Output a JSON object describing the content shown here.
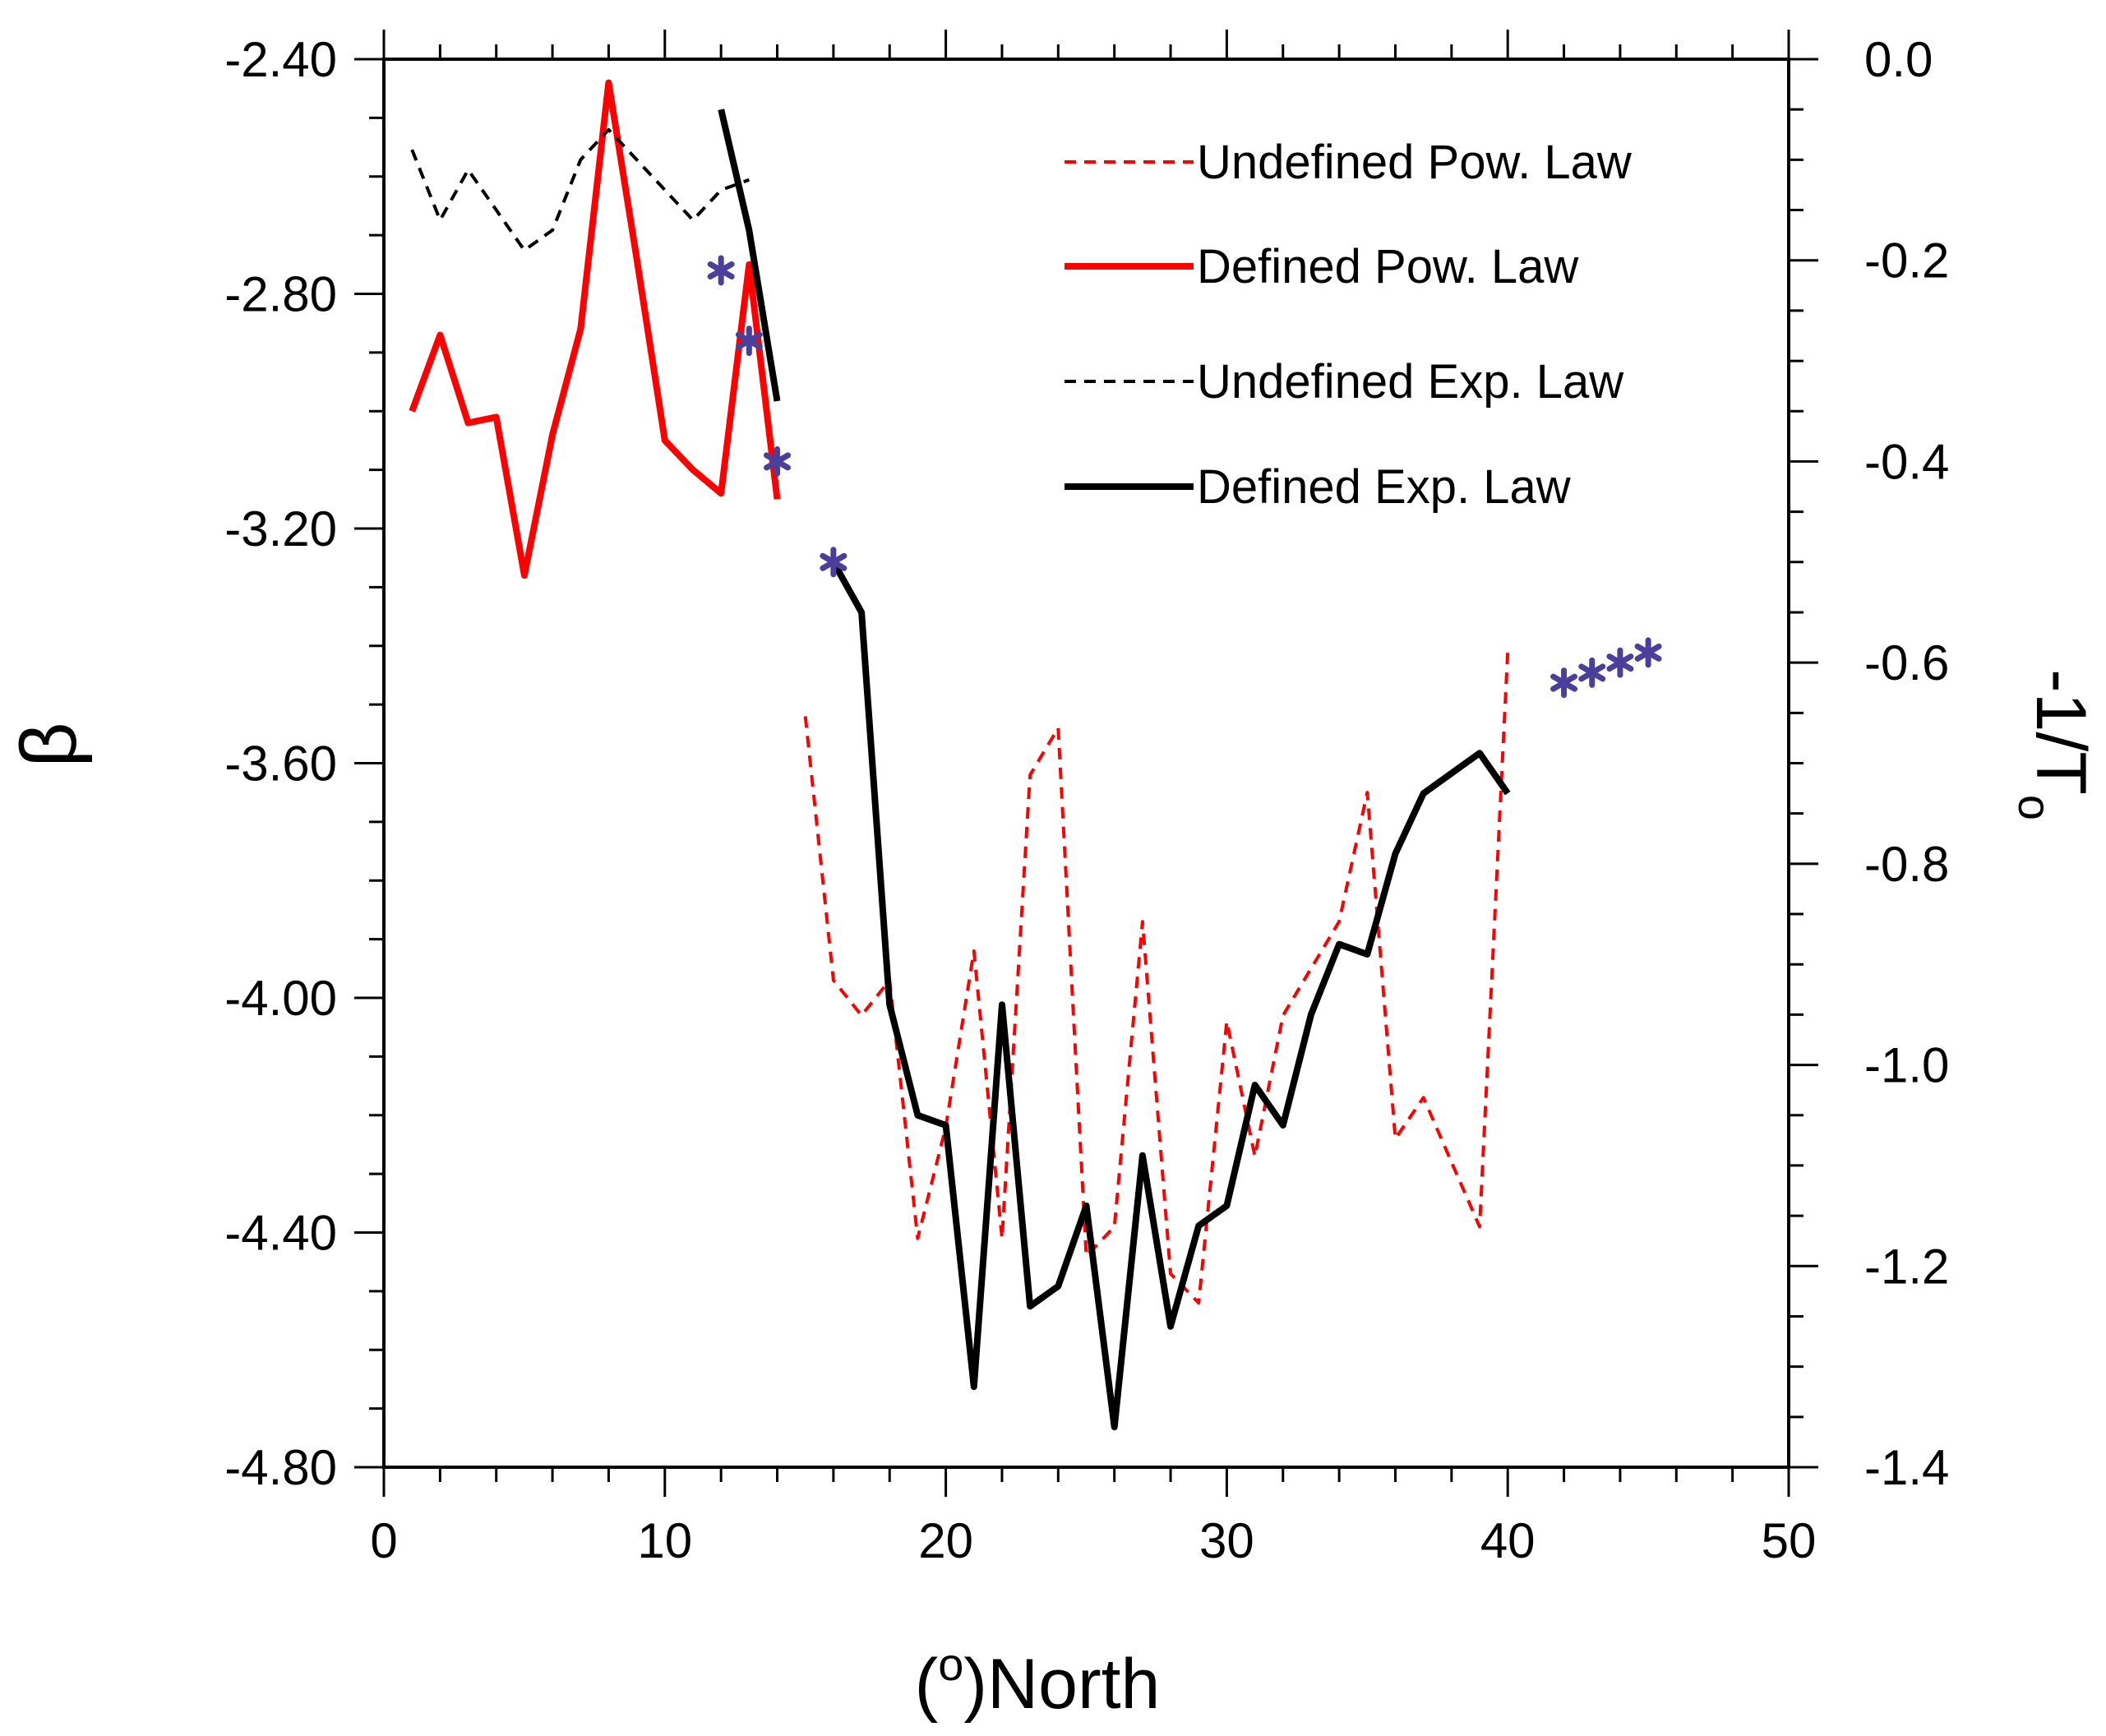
{
  "chart_data": {
    "type": "line",
    "title": "",
    "xlabel": "(°)North",
    "xlabel_parts": {
      "open": "(",
      "sup": "o",
      "close": ")North"
    },
    "ylabel_left": "β",
    "ylabel_right": "-1/T₀",
    "ylabel_right_parts": {
      "main": "-1/T",
      "sub": "o"
    },
    "xlim": [
      0,
      50
    ],
    "ylim_left": [
      -4.8,
      -2.4
    ],
    "ylim_right": [
      -1.4,
      0.0
    ],
    "x_ticks": [
      {
        "v": 0,
        "label": "0"
      },
      {
        "v": 10,
        "label": "10"
      },
      {
        "v": 20,
        "label": "20"
      },
      {
        "v": 30,
        "label": "30"
      },
      {
        "v": 40,
        "label": "40"
      },
      {
        "v": 50,
        "label": "50"
      }
    ],
    "y_left_ticks": [
      {
        "v": -2.4,
        "label": "-2.40"
      },
      {
        "v": -2.8,
        "label": "-2.80"
      },
      {
        "v": -3.2,
        "label": "-3.20"
      },
      {
        "v": -3.6,
        "label": "-3.60"
      },
      {
        "v": -4.0,
        "label": "-4.00"
      },
      {
        "v": -4.4,
        "label": "-4.40"
      },
      {
        "v": -4.8,
        "label": "-4.80"
      }
    ],
    "y_right_ticks": [
      {
        "v": 0.0,
        "label": "0.0"
      },
      {
        "v": -0.2,
        "label": "-0.2"
      },
      {
        "v": -0.4,
        "label": "-0.4"
      },
      {
        "v": -0.6,
        "label": "-0.6"
      },
      {
        "v": -0.8,
        "label": "-0.8"
      },
      {
        "v": -1.0,
        "label": "-1.0"
      },
      {
        "v": -1.2,
        "label": "-1.2"
      },
      {
        "v": -1.4,
        "label": "-1.4"
      }
    ],
    "legend_position": "top-right",
    "series": [
      {
        "name": "Undefined Pow. Law",
        "axis": "left",
        "color": "#ff0000",
        "dashed": true,
        "width": 4,
        "segments": [
          {
            "x": [
              15,
              16,
              17,
              18,
              19,
              20,
              21,
              22,
              23,
              24,
              25,
              26,
              27,
              28,
              29,
              30,
              31,
              32,
              33,
              34,
              35,
              36,
              37,
              38,
              39,
              40
            ],
            "y": [
              -3.52,
              -3.97,
              -4.03,
              -3.97,
              -4.41,
              -4.22,
              -3.92,
              -4.41,
              -3.62,
              -3.54,
              -4.44,
              -4.39,
              -3.87,
              -4.47,
              -4.52,
              -4.04,
              -4.27,
              -4.03,
              -3.95,
              -3.87,
              -3.65,
              -4.24,
              -4.17,
              -4.28,
              -4.39,
              -3.41
            ]
          }
        ]
      },
      {
        "name": "Defined Pow. Law",
        "axis": "left",
        "color": "#ff0000",
        "dashed": false,
        "width": 8,
        "segments": [
          {
            "x": [
              1,
              2,
              3,
              4,
              5,
              6,
              7,
              8,
              9,
              10,
              11,
              12,
              13,
              14
            ],
            "y": [
              -3.0,
              -2.87,
              -3.02,
              -3.01,
              -3.28,
              -3.04,
              -2.86,
              -2.44,
              -2.74,
              -3.05,
              -3.1,
              -3.14,
              -2.75,
              -3.15
            ]
          }
        ]
      },
      {
        "name": "Undefined Exp. Law",
        "axis": "right",
        "color": "#000000",
        "dashed": true,
        "width": 4,
        "segments": [
          {
            "x": [
              1,
              2,
              3,
              4,
              5,
              6,
              7,
              8,
              9,
              10,
              11,
              12,
              13
            ],
            "y": [
              -0.09,
              -0.16,
              -0.11,
              -0.15,
              -0.19,
              -0.17,
              -0.1,
              -0.07,
              -0.1,
              -0.13,
              -0.16,
              -0.13,
              -0.12
            ]
          }
        ]
      },
      {
        "name": "Defined Exp. Law",
        "axis": "right",
        "color": "#000000",
        "dashed": false,
        "width": 8,
        "segments": [
          {
            "x": [
              12,
              13,
              14
            ],
            "y": [
              -0.05,
              -0.17,
              -0.34
            ]
          },
          {
            "x": [
              16,
              17,
              18,
              19,
              20,
              21,
              22,
              23,
              24,
              25,
              26,
              27,
              28,
              29,
              30,
              31,
              32,
              33,
              34,
              35,
              36,
              37,
              38,
              39,
              40
            ],
            "y": [
              -0.5,
              -0.55,
              -0.94,
              -1.05,
              -1.06,
              -1.32,
              -0.94,
              -1.24,
              -1.22,
              -1.14,
              -1.36,
              -1.09,
              -1.26,
              -1.16,
              -1.14,
              -1.02,
              -1.06,
              -0.95,
              -0.88,
              -0.89,
              -0.79,
              -0.73,
              -0.71,
              -0.69,
              -0.73
            ]
          }
        ]
      }
    ],
    "markers": {
      "axis": "right",
      "symbol": "*",
      "color": "#4b3f9c",
      "points": [
        {
          "x": 12,
          "y": -0.21
        },
        {
          "x": 13,
          "y": -0.28
        },
        {
          "x": 14,
          "y": -0.4
        },
        {
          "x": 16,
          "y": -0.5
        },
        {
          "x": 42,
          "y": -0.62
        },
        {
          "x": 43,
          "y": -0.61
        },
        {
          "x": 44,
          "y": -0.6
        },
        {
          "x": 45,
          "y": -0.59
        }
      ]
    }
  }
}
